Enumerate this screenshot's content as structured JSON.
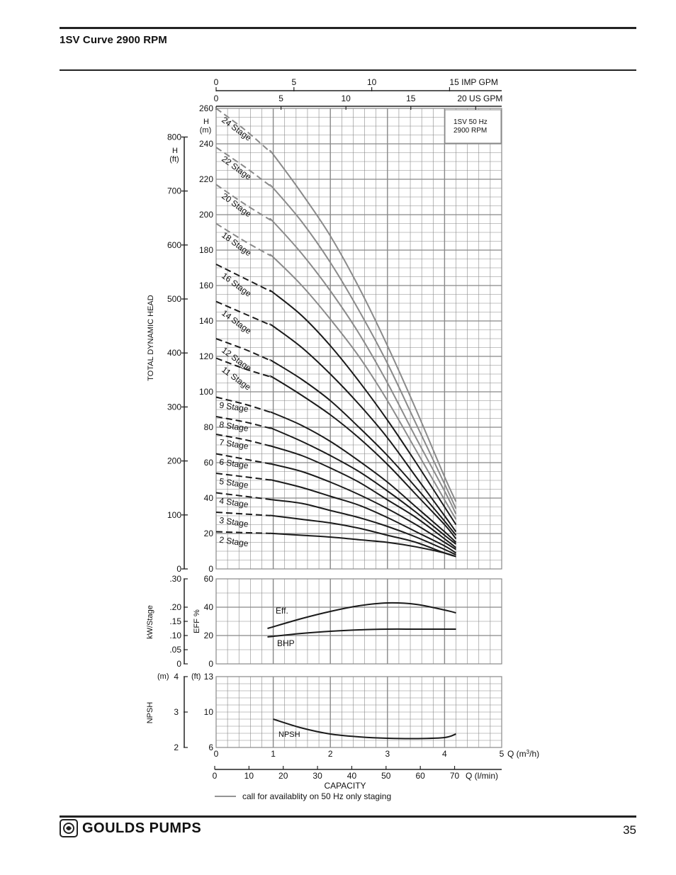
{
  "page": {
    "title": "1SV Curve 2900 RPM",
    "page_number": "35"
  },
  "brand": {
    "name": "GOULDS PUMPS",
    "logo_icon": "goulds-logo-icon"
  },
  "colors": {
    "grid": "#888888",
    "curve_black": "#1a1a1a",
    "curve_gray": "#8a8a8a"
  },
  "chart_data": [
    {
      "type": "line",
      "title": "",
      "info_box": [
        "1SV  50 Hz",
        "2900 RPM"
      ],
      "ylabel": "TOTAL DYNAMIC HEAD",
      "y_m_label": [
        "H",
        "(m)"
      ],
      "y_ft_label": [
        "H",
        "(ft)"
      ],
      "ylim_m": [
        0,
        260
      ],
      "y_m_ticks": [
        0,
        20,
        40,
        60,
        80,
        100,
        120,
        140,
        160,
        180,
        200,
        220,
        240,
        260
      ],
      "y_ft_ticks": [
        0,
        100,
        200,
        300,
        400,
        500,
        600,
        700,
        800
      ],
      "xlim_m3h": [
        0,
        5
      ],
      "top_axis_imp": {
        "ticks": [
          0,
          5,
          10,
          15
        ],
        "unit": "IMP GPM"
      },
      "top_axis_us": {
        "ticks": [
          0,
          5,
          10,
          15,
          20
        ],
        "unit": "US GPM"
      },
      "grid": true,
      "series": [
        {
          "name": "24 Stage",
          "color": "gray",
          "x": [
            0,
            0.5,
            1.0,
            1.5,
            2.0,
            2.5,
            3.0,
            3.5,
            4.0,
            4.2
          ],
          "y": [
            260,
            248,
            234,
            212,
            188,
            159,
            126,
            90,
            52,
            38
          ]
        },
        {
          "name": "22 Stage",
          "color": "gray",
          "x": [
            0,
            0.5,
            1.0,
            1.5,
            2.0,
            2.5,
            3.0,
            3.5,
            4.0,
            4.2
          ],
          "y": [
            238,
            227,
            215,
            196,
            173,
            146,
            116,
            82,
            48,
            34
          ]
        },
        {
          "name": "20 Stage",
          "color": "gray",
          "x": [
            0,
            0.5,
            1.0,
            1.5,
            2.0,
            2.5,
            3.0,
            3.5,
            4.0,
            4.2
          ],
          "y": [
            217,
            206,
            196,
            178,
            157,
            133,
            105,
            74,
            44,
            31
          ]
        },
        {
          "name": "18 Stage",
          "color": "gray",
          "x": [
            0,
            0.5,
            1.0,
            1.5,
            2.0,
            2.5,
            3.0,
            3.5,
            4.0,
            4.2
          ],
          "y": [
            195,
            185,
            176,
            160,
            141,
            120,
            95,
            67,
            39,
            28
          ]
        },
        {
          "name": "16 Stage",
          "color": "black",
          "x": [
            0,
            0.5,
            1.0,
            1.5,
            2.0,
            2.5,
            3.0,
            3.5,
            4.0,
            4.2
          ],
          "y": [
            172,
            164,
            156,
            143,
            126,
            106,
            84,
            60,
            35,
            25
          ]
        },
        {
          "name": "14 Stage",
          "color": "black",
          "x": [
            0,
            0.5,
            1.0,
            1.5,
            2.0,
            2.5,
            3.0,
            3.5,
            4.0,
            4.2
          ],
          "y": [
            151,
            144,
            137,
            125,
            110,
            93,
            74,
            52,
            30,
            21
          ]
        },
        {
          "name": "12 Stage",
          "color": "black",
          "x": [
            0,
            0.5,
            1.0,
            1.5,
            2.0,
            2.5,
            3.0,
            3.5,
            4.0,
            4.2
          ],
          "y": [
            130,
            124,
            117,
            107,
            95,
            80,
            64,
            46,
            27,
            19
          ]
        },
        {
          "name": "11 Stage",
          "color": "black",
          "x": [
            0,
            0.5,
            1.0,
            1.5,
            2.0,
            2.5,
            3.0,
            3.5,
            4.0,
            4.2
          ],
          "y": [
            119,
            113,
            108,
            98,
            87,
            74,
            59,
            42,
            25,
            17
          ]
        },
        {
          "name": "9 Stage",
          "color": "black",
          "x": [
            0,
            0.5,
            1.0,
            1.5,
            2.0,
            2.5,
            3.0,
            3.5,
            4.0,
            4.2
          ],
          "y": [
            97,
            93,
            88,
            81,
            72,
            61,
            49,
            35,
            21,
            15
          ]
        },
        {
          "name": "8 Stage",
          "color": "black",
          "x": [
            0,
            0.5,
            1.0,
            1.5,
            2.0,
            2.5,
            3.0,
            3.5,
            4.0,
            4.2
          ],
          "y": [
            86,
            83,
            79,
            72,
            64,
            55,
            44,
            32,
            19,
            14
          ]
        },
        {
          "name": "7 Stage",
          "color": "black",
          "x": [
            0,
            0.5,
            1.0,
            1.5,
            2.0,
            2.5,
            3.0,
            3.5,
            4.0,
            4.2
          ],
          "y": [
            76,
            73,
            69,
            64,
            57,
            49,
            39,
            29,
            17,
            12
          ]
        },
        {
          "name": "6 Stage",
          "color": "black",
          "x": [
            0,
            0.5,
            1.0,
            1.5,
            2.0,
            2.5,
            3.0,
            3.5,
            4.0,
            4.2
          ],
          "y": [
            65,
            62,
            59,
            55,
            49,
            42,
            34,
            25,
            15,
            11
          ]
        },
        {
          "name": "5 Stage",
          "color": "black",
          "x": [
            0,
            0.5,
            1.0,
            1.5,
            2.0,
            2.5,
            3.0,
            3.5,
            4.0,
            4.2
          ],
          "y": [
            54,
            52,
            50,
            46,
            41,
            36,
            29,
            21,
            13,
            9
          ]
        },
        {
          "name": "4 Stage",
          "color": "black",
          "x": [
            0,
            0.5,
            1.0,
            1.5,
            2.0,
            2.5,
            3.0,
            3.5,
            4.0,
            4.2
          ],
          "y": [
            43,
            41,
            39,
            37,
            33,
            29,
            24,
            18,
            11,
            8
          ]
        },
        {
          "name": "3 Stage",
          "color": "black",
          "x": [
            0,
            0.5,
            1.0,
            1.5,
            2.0,
            2.5,
            3.0,
            3.5,
            4.0,
            4.2
          ],
          "y": [
            32,
            31,
            30,
            28,
            26,
            23,
            19,
            15,
            9,
            7
          ]
        },
        {
          "name": "2 Stage",
          "color": "black",
          "x": [
            0,
            0.5,
            1.0,
            1.5,
            2.0,
            2.5,
            3.0,
            3.5,
            4.0,
            4.2
          ],
          "y": [
            21,
            20.5,
            20,
            19,
            18,
            16.5,
            15,
            12.5,
            9,
            7
          ]
        }
      ]
    },
    {
      "type": "line",
      "title": "",
      "ylabel_left": "kW/Stage",
      "ylabel_right": "EFF %",
      "ylim_eff": [
        0,
        60
      ],
      "eff_ticks": [
        0,
        20,
        40,
        60
      ],
      "kw_ticks": [
        ".30",
        ".20",
        ".15",
        ".10",
        ".05",
        "0"
      ],
      "xlim_m3h": [
        0,
        5
      ],
      "grid": true,
      "series": [
        {
          "name": "Eff.",
          "x": [
            0.9,
            1.5,
            2.0,
            2.5,
            3.0,
            3.5,
            4.0,
            4.2
          ],
          "y": [
            25,
            32,
            37,
            41,
            43,
            42,
            38,
            36
          ]
        },
        {
          "name": "BHP",
          "x": [
            0.9,
            1.5,
            2.0,
            2.5,
            3.0,
            3.5,
            4.0,
            4.2
          ],
          "y": [
            19,
            21.5,
            23,
            24,
            24.5,
            24.5,
            24.5,
            24.5
          ]
        }
      ]
    },
    {
      "type": "line",
      "title": "",
      "ylabel": "NPSH",
      "y_m_unit": "(m)",
      "y_ft_unit": "(ft)",
      "ylim_m": [
        2,
        4
      ],
      "y_m_ticks": [
        2,
        3,
        4
      ],
      "y_ft_ticks": [
        6,
        10,
        13
      ],
      "xlim_m3h": [
        0,
        5
      ],
      "grid": true,
      "series": [
        {
          "name": "NPSH",
          "x": [
            1.0,
            1.5,
            2.0,
            2.5,
            3.0,
            3.5,
            4.0,
            4.2
          ],
          "y": [
            2.8,
            2.55,
            2.38,
            2.3,
            2.26,
            2.25,
            2.28,
            2.38
          ]
        }
      ]
    }
  ],
  "bottom_axis": {
    "m3h_ticks": [
      "0",
      "1",
      "2",
      "3",
      "4",
      "5"
    ],
    "m3h_unit_prefix": "Q (m",
    "m3h_unit_sup": "3",
    "m3h_unit_suffix": "/h)",
    "lmin_ticks": [
      "0",
      "10",
      "20",
      "30",
      "40",
      "50",
      "60",
      "70"
    ],
    "lmin_unit": "Q (l/min)",
    "capacity_label": "CAPACITY"
  },
  "legend_note": "call for availablity on 50 Hz only staging"
}
